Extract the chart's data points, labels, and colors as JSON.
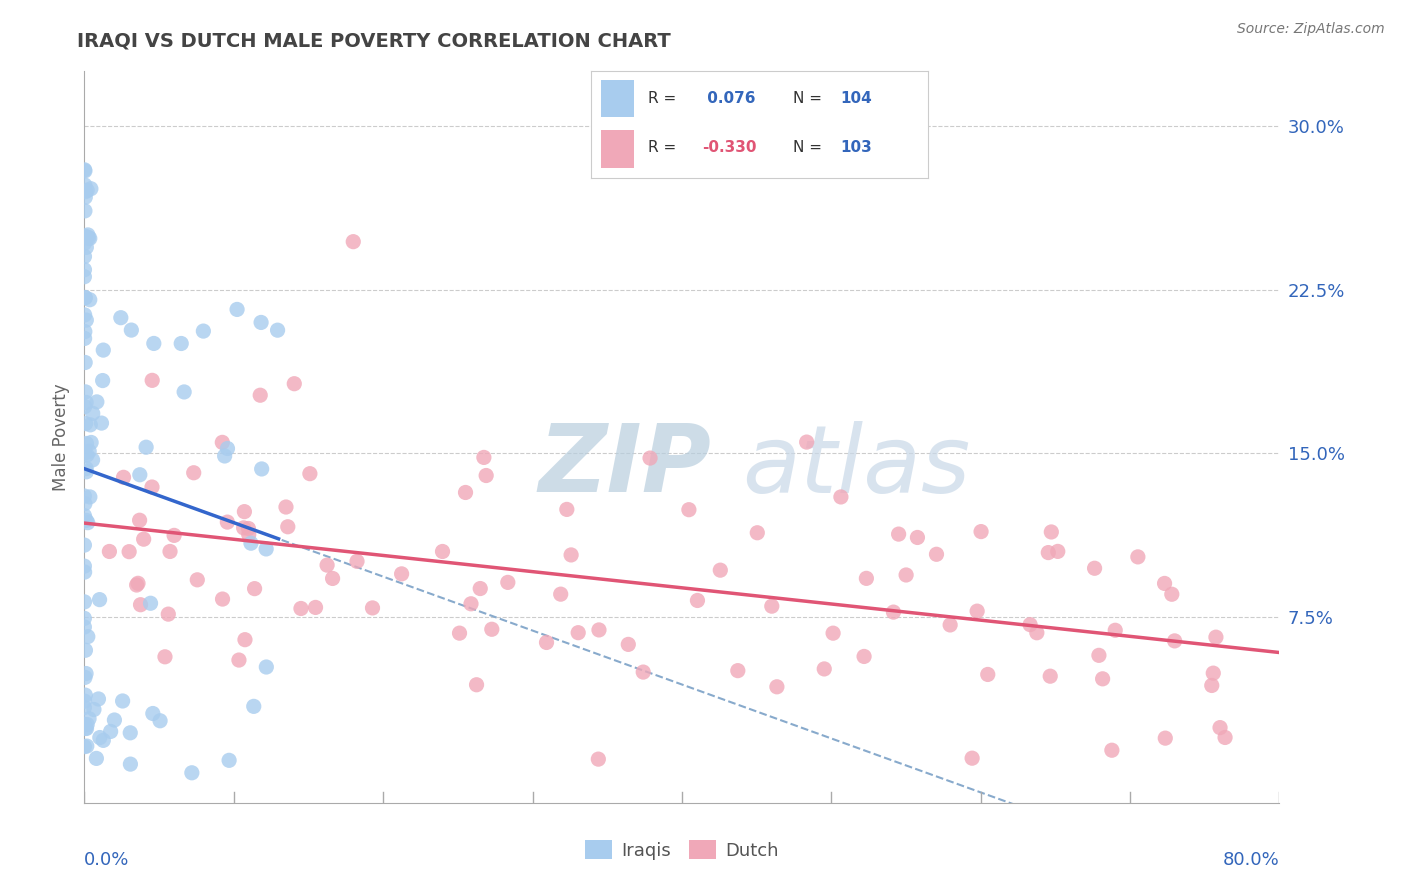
{
  "title": "IRAQI VS DUTCH MALE POVERTY CORRELATION CHART",
  "source": "Source: ZipAtlas.com",
  "ylabel": "Male Poverty",
  "xmin": 0.0,
  "xmax": 0.8,
  "ymin": -0.01,
  "ymax": 0.325,
  "iraqi_R": 0.076,
  "iraqi_N": 104,
  "dutch_R": -0.33,
  "dutch_N": 103,
  "iraqi_color": "#A8CCEE",
  "dutch_color": "#F0A8B8",
  "iraqi_line_color": "#3366CC",
  "dutch_line_color": "#E05575",
  "dashed_line_color": "#88AACC",
  "background_color": "#FFFFFF",
  "grid_color": "#DDDDDD",
  "title_color": "#444444",
  "axis_label_color": "#3366BB",
  "watermark_zip_color": "#BBCCDD",
  "watermark_atlas_color": "#CCDDEE",
  "ytick_vals": [
    0.075,
    0.15,
    0.225,
    0.3
  ],
  "ytick_labels": [
    "7.5%",
    "15.0%",
    "22.5%",
    "30.0%"
  ]
}
